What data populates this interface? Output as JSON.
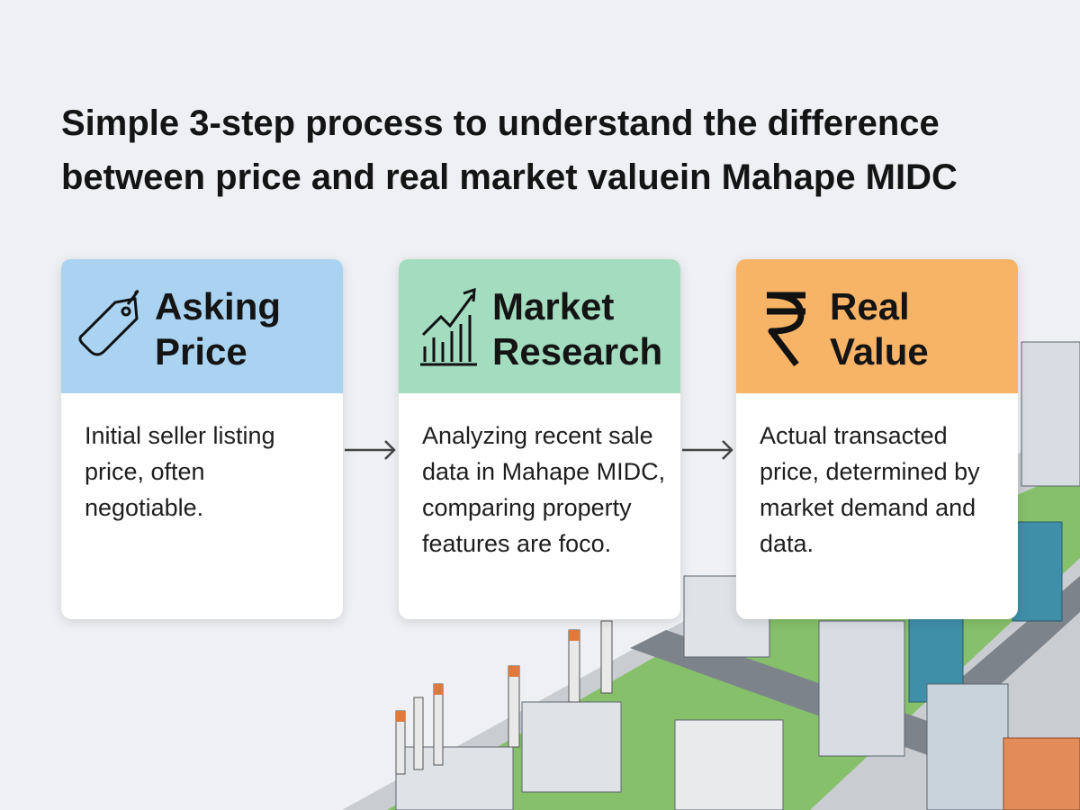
{
  "header": {
    "title": [
      "Simple 3-step process to understand the difference",
      "between price and real market valuein Mahape MIDC"
    ]
  },
  "steps": [
    {
      "title": [
        "Asking",
        "Price"
      ],
      "description": [
        "Initial seller listing",
        "price, often",
        "negotiable."
      ]
    },
    {
      "title": [
        "Market",
        "Research"
      ],
      "description": [
        "Analyzing recent sale",
        "data in Mahape MIDC,",
        "comparing property",
        "features are foco."
      ]
    },
    {
      "title": [
        "Real",
        "Value"
      ],
      "description": [
        "Actual transacted",
        "price, determined by",
        "market demand and",
        "data."
      ]
    }
  ]
}
